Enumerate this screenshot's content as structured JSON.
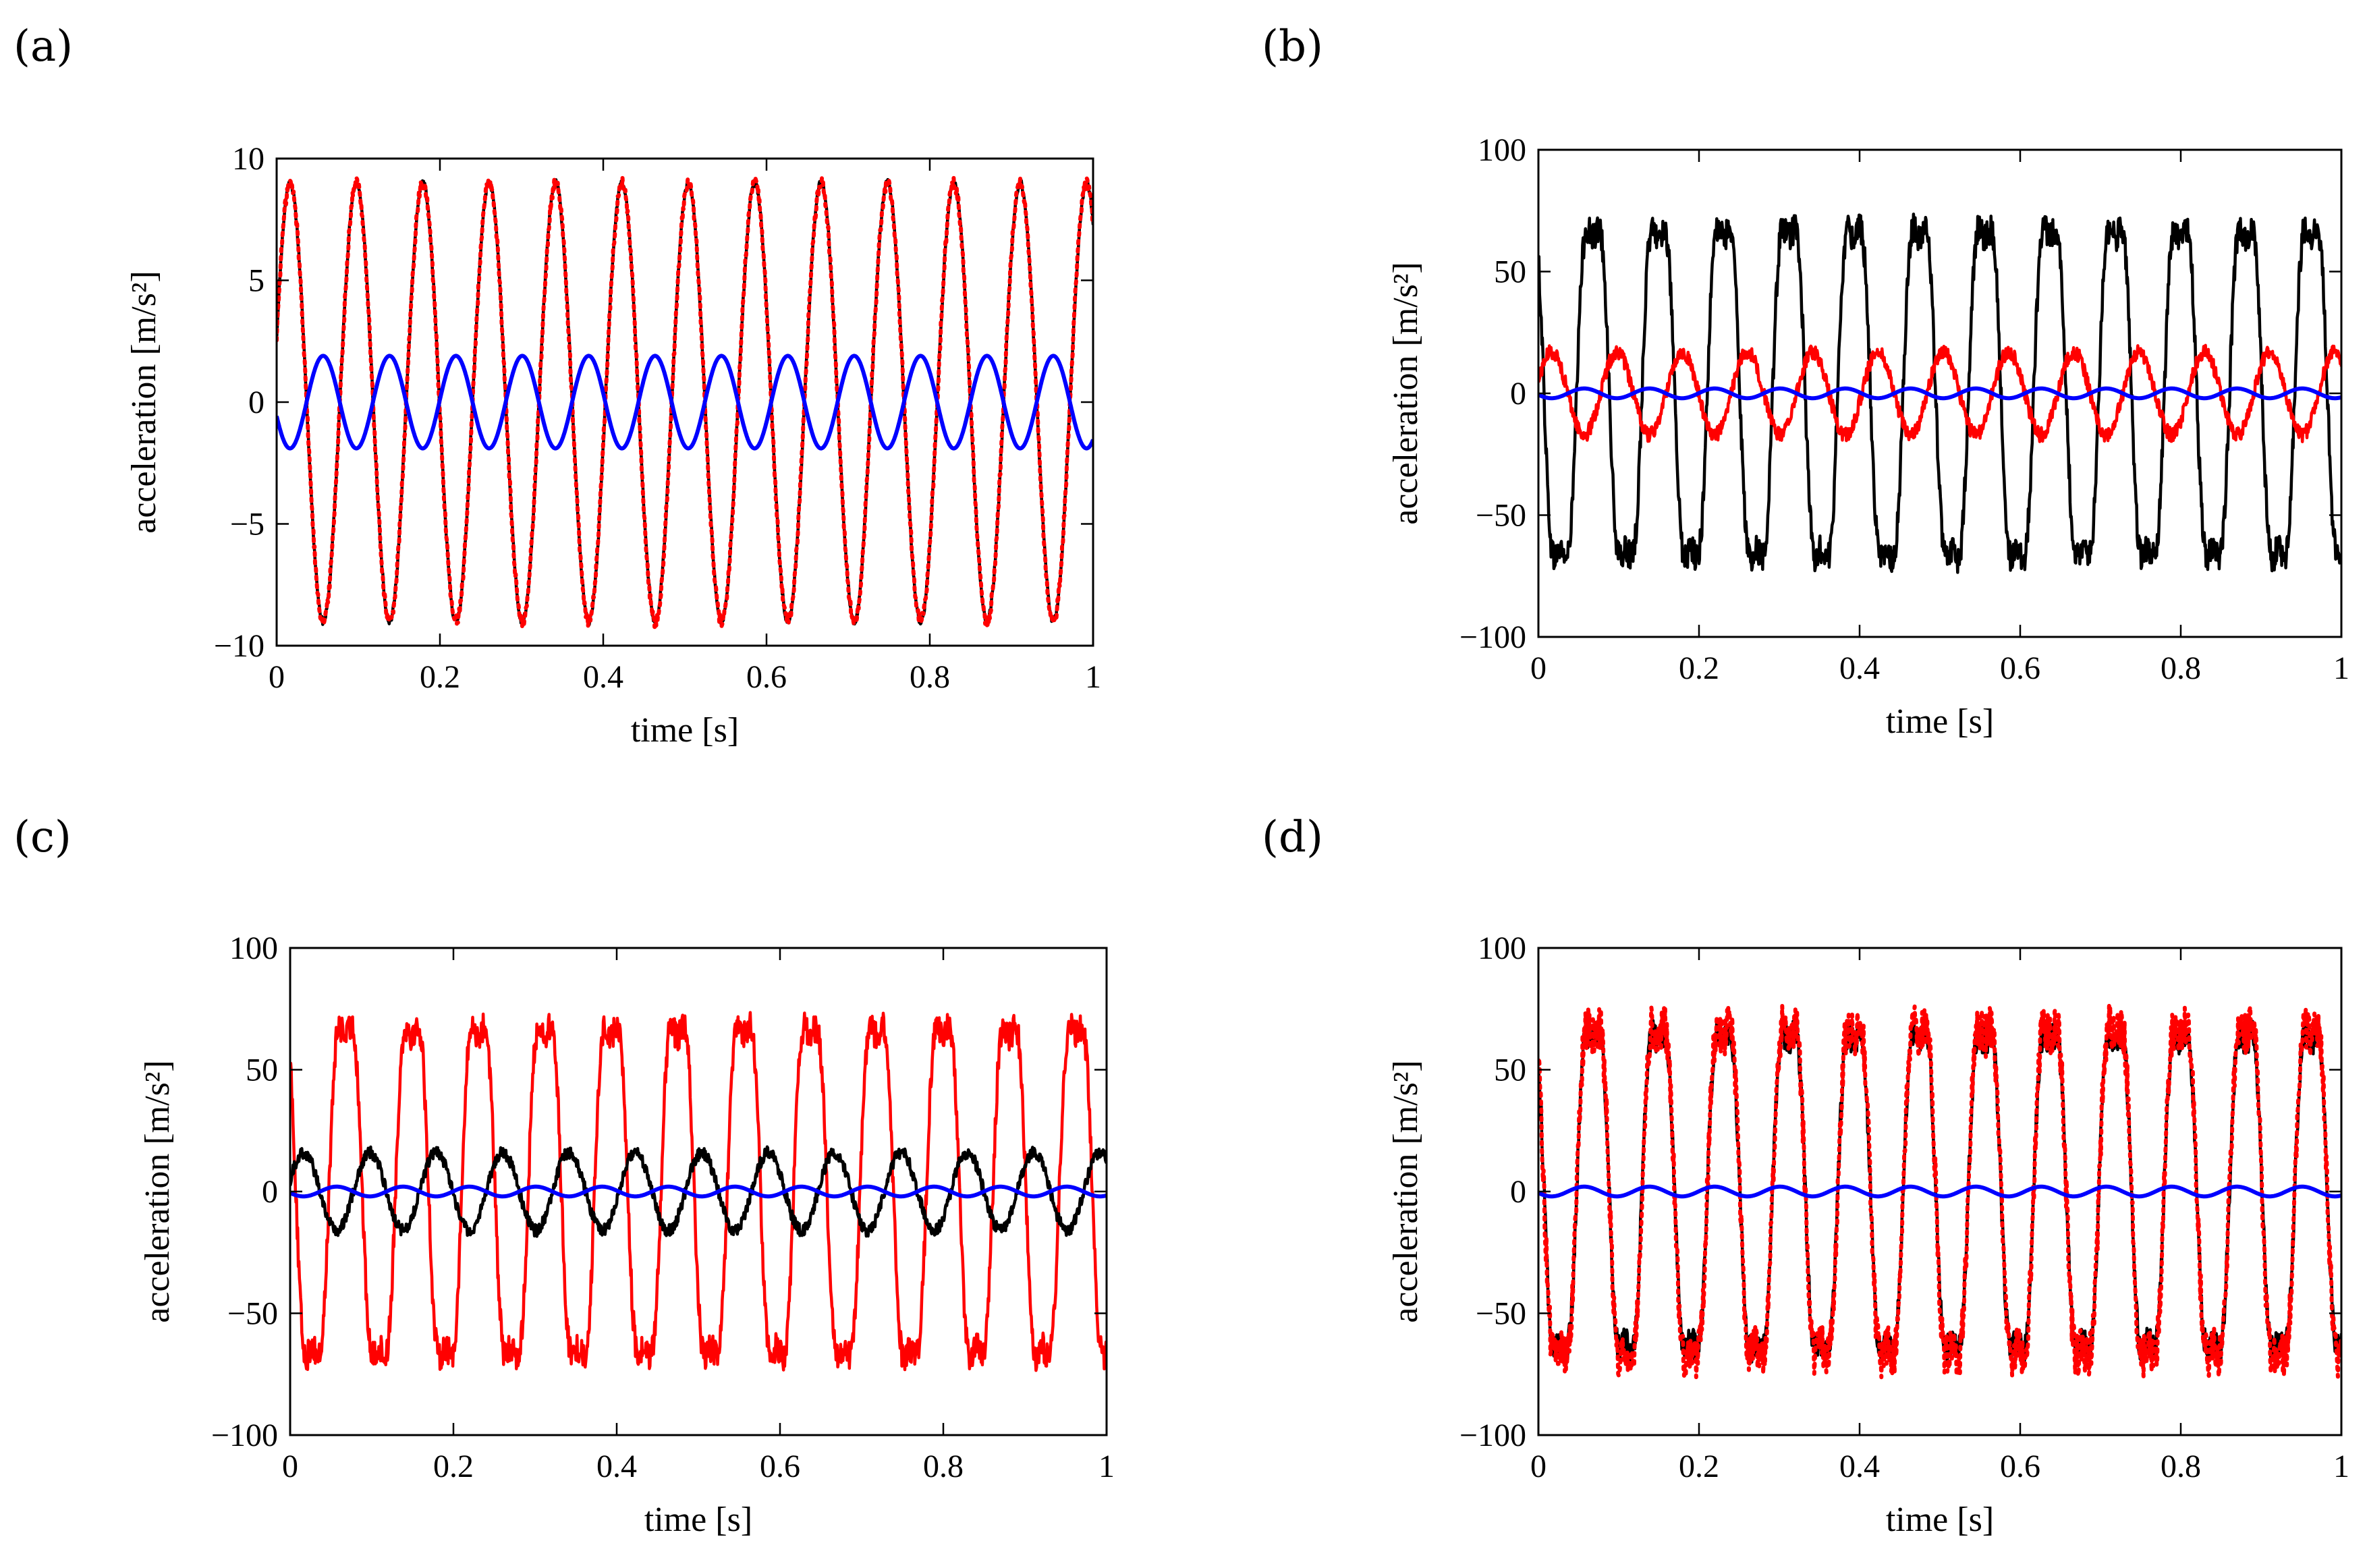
{
  "figure": {
    "panel_labels": [
      "(a)",
      "(b)",
      "(c)",
      "(d)"
    ]
  },
  "chart_data": [
    {
      "id": "a",
      "type": "line",
      "label": "(a)",
      "xlabel": "time [s]",
      "ylabel": "acceleration [m/s²]",
      "xlim": [
        0,
        1
      ],
      "ylim": [
        -10,
        10
      ],
      "xticks": [
        0,
        0.2,
        0.4,
        0.6,
        0.8,
        1
      ],
      "xtick_labels": [
        "0",
        "0.2",
        "0.4",
        "0.6",
        "0.8",
        "1"
      ],
      "yticks": [
        -10,
        -5,
        0,
        5,
        10
      ],
      "ytick_labels": [
        "−10",
        "−5",
        "0",
        "5",
        "10"
      ],
      "series": [
        {
          "name": "black",
          "color": "#000000",
          "style": "solid",
          "amplitude": 9.0,
          "frequency_hz": 12.3,
          "phase_rad": 0.3,
          "offset": 0,
          "noise": 0.15,
          "harmonic": 0
        },
        {
          "name": "red",
          "color": "#ff0000",
          "style": "dotted",
          "amplitude": 9.0,
          "frequency_hz": 12.3,
          "phase_rad": 0.3,
          "offset": 0,
          "noise": 0.25,
          "harmonic": 0
        },
        {
          "name": "blue",
          "color": "#0000ff",
          "style": "solid",
          "amplitude": 1.9,
          "frequency_hz": 12.3,
          "phase_rad": 3.45,
          "offset": 0,
          "noise": 0,
          "harmonic": 0
        }
      ]
    },
    {
      "id": "b",
      "type": "line",
      "label": "(b)",
      "xlabel": "time [s]",
      "ylabel": "acceleration [m/s²]",
      "xlim": [
        0,
        1
      ],
      "ylim": [
        -100,
        100
      ],
      "xticks": [
        0,
        0.2,
        0.4,
        0.6,
        0.8,
        1
      ],
      "xtick_labels": [
        "0",
        "0.2",
        "0.4",
        "0.6",
        "0.8",
        "1"
      ],
      "yticks": [
        -100,
        -50,
        0,
        50,
        100
      ],
      "ytick_labels": [
        "−100",
        "−50",
        "0",
        "50",
        "100"
      ],
      "series": [
        {
          "name": "black",
          "color": "#000000",
          "style": "solid",
          "amplitude": 78,
          "frequency_hz": 12.3,
          "phase_rad": 2.6,
          "offset": 0,
          "noise": 6,
          "harmonic": 0.18
        },
        {
          "name": "red",
          "color": "#ff0000",
          "style": "solid",
          "amplitude": 17,
          "frequency_hz": 12.3,
          "phase_rad": 0.3,
          "offset": 0,
          "noise": 3,
          "harmonic": 0
        },
        {
          "name": "blue",
          "color": "#0000ff",
          "style": "solid",
          "amplitude": 2,
          "frequency_hz": 12.3,
          "phase_rad": 3.45,
          "offset": 0,
          "noise": 0,
          "harmonic": 0
        }
      ]
    },
    {
      "id": "c",
      "type": "line",
      "label": "(c)",
      "xlabel": "time [s]",
      "ylabel": "acceleration [m/s²]",
      "xlim": [
        0,
        1
      ],
      "ylim": [
        -100,
        100
      ],
      "xticks": [
        0,
        0.2,
        0.4,
        0.6,
        0.8,
        1
      ],
      "xtick_labels": [
        "0",
        "0.2",
        "0.4",
        "0.6",
        "0.8",
        "1"
      ],
      "yticks": [
        -100,
        -50,
        0,
        50,
        100
      ],
      "ytick_labels": [
        "−100",
        "−50",
        "0",
        "50",
        "100"
      ],
      "series": [
        {
          "name": "red",
          "color": "#ff0000",
          "style": "solid",
          "amplitude": 78,
          "frequency_hz": 12.3,
          "phase_rad": 2.6,
          "offset": 0,
          "noise": 6,
          "harmonic": 0.18
        },
        {
          "name": "black",
          "color": "#000000",
          "style": "solid",
          "amplitude": 16,
          "frequency_hz": 12.3,
          "phase_rad": 0.3,
          "offset": 0,
          "noise": 2.5,
          "harmonic": 0
        },
        {
          "name": "blue",
          "color": "#0000ff",
          "style": "solid",
          "amplitude": 2,
          "frequency_hz": 12.3,
          "phase_rad": 3.45,
          "offset": 0,
          "noise": 0,
          "harmonic": 0
        }
      ]
    },
    {
      "id": "d",
      "type": "line",
      "label": "(d)",
      "xlabel": "time [s]",
      "ylabel": "acceleration [m/s²]",
      "xlim": [
        0,
        1
      ],
      "ylim": [
        -100,
        100
      ],
      "xticks": [
        0,
        0.2,
        0.4,
        0.6,
        0.8,
        1
      ],
      "xtick_labels": [
        "0",
        "0.2",
        "0.4",
        "0.6",
        "0.8",
        "1"
      ],
      "yticks": [
        -100,
        -50,
        0,
        50,
        100
      ],
      "ytick_labels": [
        "−100",
        "−50",
        "0",
        "50",
        "100"
      ],
      "series": [
        {
          "name": "black",
          "color": "#000000",
          "style": "solid",
          "amplitude": 75,
          "frequency_hz": 12.3,
          "phase_rad": 2.6,
          "offset": 0,
          "noise": 6,
          "harmonic": 0.18
        },
        {
          "name": "red",
          "color": "#ff0000",
          "style": "dotted",
          "amplitude": 78,
          "frequency_hz": 12.3,
          "phase_rad": 2.6,
          "offset": 0,
          "noise": 9,
          "harmonic": 0.18
        },
        {
          "name": "blue",
          "color": "#0000ff",
          "style": "solid",
          "amplitude": 2,
          "frequency_hz": 12.3,
          "phase_rad": 3.45,
          "offset": 0,
          "noise": 0,
          "harmonic": 0
        }
      ]
    }
  ]
}
